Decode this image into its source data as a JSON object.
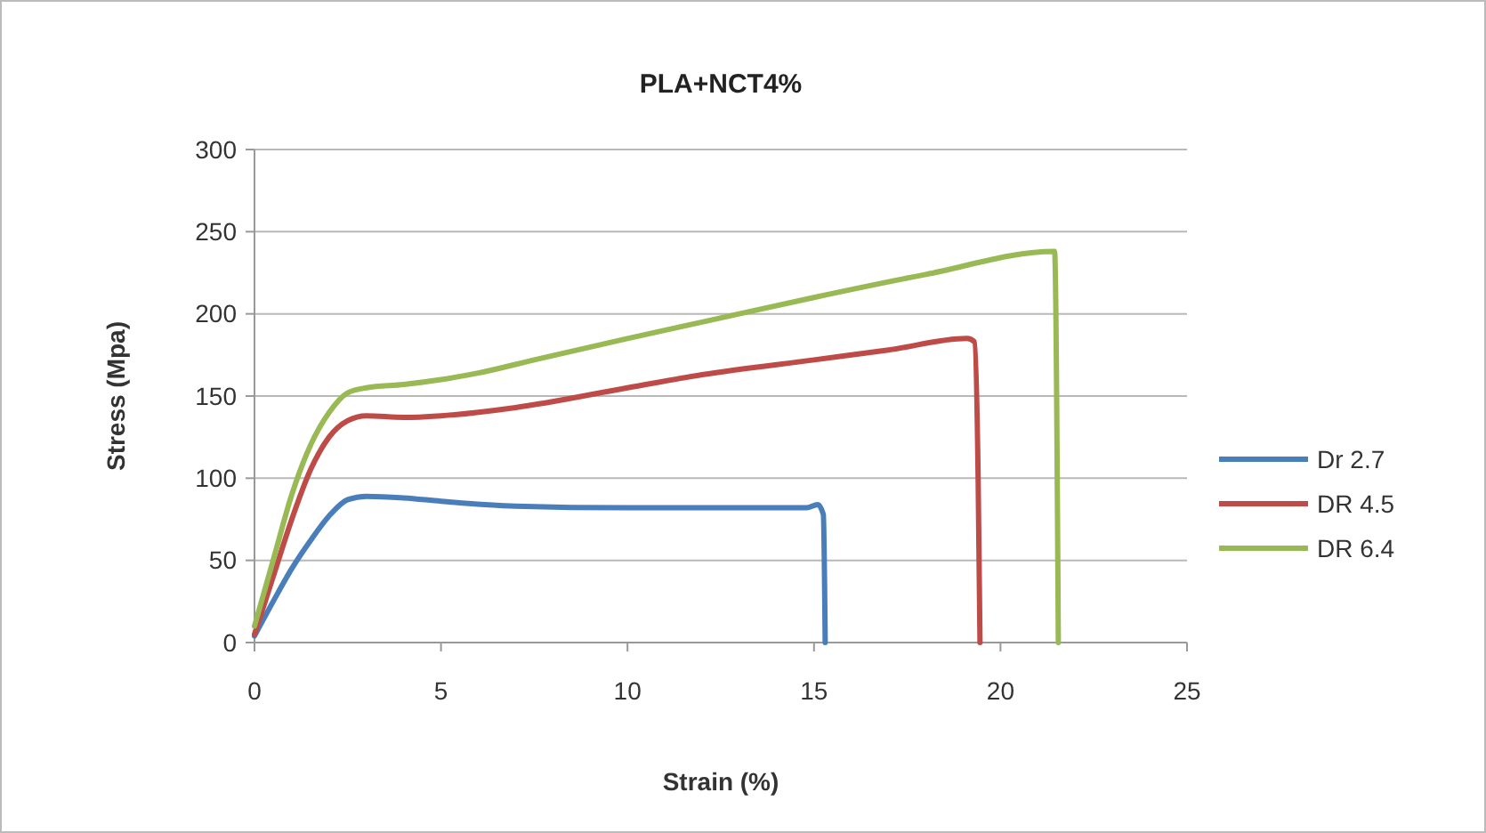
{
  "chart_data": {
    "type": "line",
    "title": "PLA+NCT4%",
    "xlabel": "Strain (%)",
    "ylabel": "Stress (Mpa)",
    "xlim": [
      0,
      25
    ],
    "xticks": [
      0,
      5,
      10,
      15,
      20,
      25
    ],
    "ylim": [
      0,
      300
    ],
    "yticks": [
      0,
      50,
      100,
      150,
      200,
      250,
      300
    ],
    "grid": "y",
    "legend": "right",
    "marker": "none",
    "line_style": "solid",
    "series": [
      {
        "name": "Dr 2.7",
        "color": "#4a7ebb",
        "x": [
          0,
          0.5,
          1,
          1.5,
          2,
          2.5,
          3,
          4,
          5,
          7,
          10,
          13,
          14.8,
          15.1,
          15.25,
          15.3
        ],
        "values": [
          4,
          25,
          45,
          62,
          77,
          87,
          89,
          88,
          86,
          83,
          82,
          82,
          82,
          84,
          78,
          0
        ]
      },
      {
        "name": "DR 4.5",
        "color": "#be4b48",
        "x": [
          0,
          0.5,
          1,
          1.5,
          2,
          2.5,
          3,
          4,
          5,
          7,
          10,
          12,
          15,
          17,
          19.1,
          19.3,
          19.4,
          19.45
        ],
        "values": [
          5,
          40,
          75,
          105,
          125,
          135,
          138,
          137,
          138,
          143,
          155,
          163,
          172,
          178,
          185,
          183,
          100,
          0
        ]
      },
      {
        "name": "DR 6.4",
        "color": "#98b954",
        "x": [
          0,
          0.5,
          1,
          1.5,
          2,
          2.5,
          3,
          4,
          5,
          6,
          7.5,
          10,
          12,
          15,
          18,
          21.45,
          21.55
        ],
        "values": [
          10,
          50,
          90,
          120,
          140,
          152,
          155,
          157,
          160,
          164,
          172,
          185,
          195,
          210,
          224,
          238,
          0
        ]
      }
    ]
  }
}
